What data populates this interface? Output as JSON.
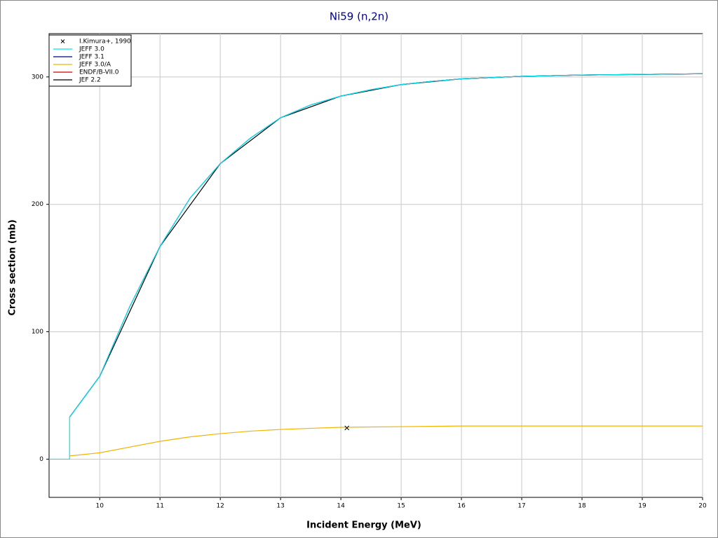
{
  "chart_data": {
    "type": "line",
    "title": "Ni59 (n,2n)",
    "x_label": "Incident Energy (MeV)",
    "y_label": "Cross section (mb)",
    "xlim": [
      9.16,
      20
    ],
    "ylim": [
      -30,
      334
    ],
    "xticks": [
      10,
      11,
      12,
      13,
      14,
      15,
      16,
      17,
      18,
      19,
      20
    ],
    "yticks": [
      0,
      100,
      200,
      300
    ],
    "grid": true,
    "legend": "upper-left",
    "series": [
      {
        "name": "I.Kimura+, 1990",
        "color": "#000000",
        "style": "marker",
        "x": [
          14.1
        ],
        "values": [
          24.5
        ]
      },
      {
        "name": "JEFF 3.0",
        "color": "#00e5ee",
        "style": "line",
        "x": [
          9.16,
          9.5,
          9.5,
          10,
          10.5,
          11,
          11.5,
          12,
          12.5,
          13,
          13.5,
          14,
          14.5,
          15,
          15.5,
          16,
          17,
          18,
          19,
          20
        ],
        "values": [
          0,
          0,
          33,
          65,
          120,
          167,
          205,
          232,
          252,
          268,
          278,
          285,
          290,
          294,
          296.5,
          298.5,
          300.5,
          301.5,
          302,
          302.5
        ]
      },
      {
        "name": "JEFF 3.1",
        "color": "#000080",
        "style": "line",
        "x": [
          9.5,
          10,
          10.5,
          11,
          11.5,
          12,
          12.5,
          13,
          13.5,
          14,
          14.5,
          15,
          15.5,
          16,
          17,
          18,
          19,
          20
        ],
        "values": [
          33,
          65,
          120,
          167,
          205,
          232,
          252,
          268,
          278,
          285,
          290,
          294,
          296.5,
          298.5,
          300.5,
          301.5,
          302,
          302.5
        ]
      },
      {
        "name": "JEFF 3.0/A",
        "color": "#f0b400",
        "style": "line",
        "x": [
          9.5,
          10,
          10.5,
          11,
          11.5,
          12,
          12.5,
          13,
          13.5,
          14,
          15,
          16,
          17,
          18,
          20
        ],
        "values": [
          2.5,
          5,
          9.5,
          14,
          17.5,
          20,
          22,
          23.3,
          24.2,
          25,
          25.5,
          26,
          26,
          26,
          26
        ]
      },
      {
        "name": "ENDF/B-VII.0",
        "color": "#cc0000",
        "style": "line",
        "x": [
          15,
          15.5,
          16,
          17,
          18,
          19,
          20
        ],
        "values": [
          294,
          296.5,
          298.5,
          300.5,
          301.5,
          302,
          302.5
        ]
      },
      {
        "name": "JEF 2.2",
        "color": "#000000",
        "style": "line",
        "x": [
          9.5,
          10,
          11,
          12,
          13,
          14,
          15,
          16,
          17,
          18,
          20
        ],
        "values": [
          33,
          65,
          167,
          232,
          268,
          285,
          294,
          298.5,
          300.5,
          301.5,
          302.5
        ]
      }
    ]
  }
}
